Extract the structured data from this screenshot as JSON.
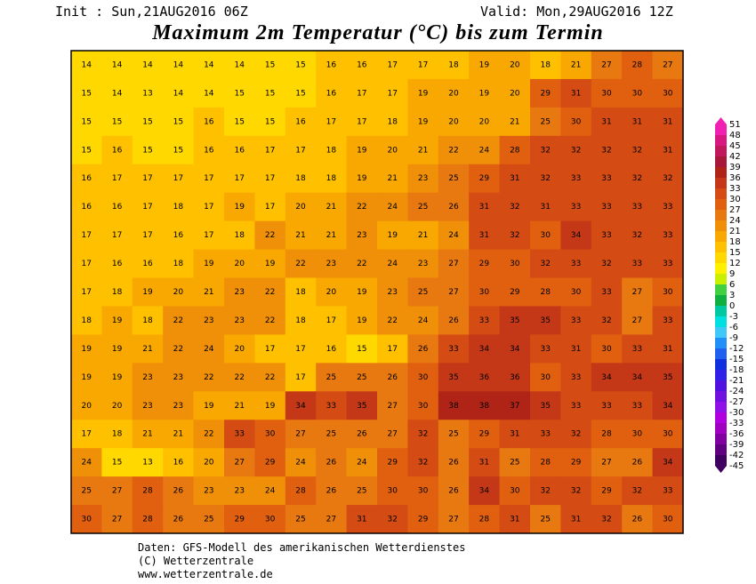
{
  "header": {
    "init": "Init : Sun,21AUG2016 06Z",
    "valid": "Valid: Mon,29AUG2016 12Z"
  },
  "title": "Maximum 2m Temperatur (°C) bis zum Termin",
  "colorbar": {
    "levels": [
      51,
      48,
      45,
      42,
      39,
      36,
      33,
      30,
      27,
      24,
      21,
      18,
      15,
      12,
      9,
      6,
      3,
      0,
      -3,
      -6,
      -9,
      -12,
      -15,
      -18,
      -21,
      -24,
      -27,
      -30,
      -33,
      -36,
      -39,
      -42,
      -45
    ],
    "colors": [
      "#f020b0",
      "#d81880",
      "#c0185a",
      "#a81838",
      "#b02418",
      "#c43818",
      "#d44c14",
      "#e06010",
      "#e87810",
      "#f09008",
      "#f8a800",
      "#ffc000",
      "#ffd800",
      "#fff000",
      "#c8f000",
      "#40d040",
      "#10b040",
      "#00c8a0",
      "#00e0e0",
      "#40c8f8",
      "#2090f8",
      "#2060f0",
      "#1030e0",
      "#3020e8",
      "#5010e0",
      "#7010e0",
      "#9010e8",
      "#b000e0",
      "#a000c0",
      "#8000a0",
      "#600080",
      "#400060"
    ]
  },
  "map": {
    "rows": [
      [
        14,
        14,
        14,
        14,
        14,
        14,
        15,
        15,
        16,
        16,
        17,
        17,
        18,
        19,
        20,
        18,
        21,
        27,
        28,
        27
      ],
      [
        15,
        14,
        13,
        14,
        14,
        15,
        15,
        15,
        16,
        17,
        17,
        19,
        20,
        19,
        20,
        29,
        31,
        30,
        30,
        30
      ],
      [
        15,
        15,
        15,
        15,
        16,
        15,
        15,
        16,
        17,
        17,
        18,
        19,
        20,
        20,
        21,
        25,
        30,
        31,
        31,
        31
      ],
      [
        15,
        16,
        15,
        15,
        16,
        16,
        17,
        17,
        18,
        19,
        20,
        21,
        22,
        24,
        28,
        32,
        32,
        32,
        32,
        31
      ],
      [
        16,
        17,
        17,
        17,
        17,
        17,
        17,
        18,
        18,
        19,
        21,
        23,
        25,
        29,
        31,
        32,
        33,
        33,
        32,
        32
      ],
      [
        16,
        16,
        17,
        18,
        17,
        19,
        17,
        20,
        21,
        22,
        24,
        25,
        26,
        31,
        32,
        31,
        33,
        33,
        33,
        33
      ],
      [
        17,
        17,
        17,
        16,
        17,
        18,
        22,
        21,
        21,
        23,
        19,
        21,
        24,
        31,
        32,
        30,
        34,
        33,
        32,
        33
      ],
      [
        17,
        16,
        16,
        18,
        19,
        20,
        19,
        22,
        23,
        22,
        24,
        23,
        27,
        29,
        30,
        32,
        33,
        32,
        33,
        33
      ],
      [
        17,
        18,
        19,
        20,
        21,
        23,
        22,
        18,
        20,
        19,
        23,
        25,
        27,
        30,
        29,
        28,
        30,
        33,
        27,
        30
      ],
      [
        18,
        19,
        18,
        22,
        23,
        23,
        22,
        18,
        17,
        19,
        22,
        24,
        26,
        33,
        35,
        35,
        33,
        32,
        27,
        33
      ],
      [
        19,
        19,
        21,
        22,
        24,
        20,
        17,
        17,
        16,
        15,
        17,
        26,
        33,
        34,
        34,
        33,
        31,
        30,
        33,
        31
      ],
      [
        19,
        19,
        23,
        23,
        22,
        22,
        22,
        17,
        25,
        25,
        26,
        30,
        35,
        36,
        36,
        30,
        33,
        34,
        34,
        35
      ],
      [
        20,
        20,
        23,
        23,
        19,
        21,
        19,
        34,
        33,
        35,
        27,
        30,
        38,
        38,
        37,
        35,
        33,
        33,
        33,
        34
      ],
      [
        17,
        18,
        21,
        21,
        22,
        33,
        30,
        27,
        25,
        26,
        27,
        32,
        25,
        29,
        31,
        33,
        32,
        28,
        30,
        30
      ],
      [
        24,
        15,
        13,
        16,
        20,
        27,
        29,
        24,
        26,
        24,
        29,
        32,
        26,
        31,
        25,
        28,
        29,
        27,
        26,
        34
      ],
      [
        25,
        27,
        28,
        26,
        23,
        23,
        24,
        28,
        26,
        25,
        30,
        30,
        26,
        34,
        30,
        32,
        32,
        29,
        32,
        33
      ],
      [
        30,
        27,
        28,
        26,
        25,
        29,
        30,
        25,
        27,
        31,
        32,
        29,
        27,
        28,
        31,
        25,
        31,
        32,
        26,
        30
      ]
    ]
  },
  "footer": [
    "Daten: GFS-Modell des amerikanischen Wetterdienstes",
    "(C) Wetterzentrale",
    "www.wetterzentrale.de"
  ]
}
